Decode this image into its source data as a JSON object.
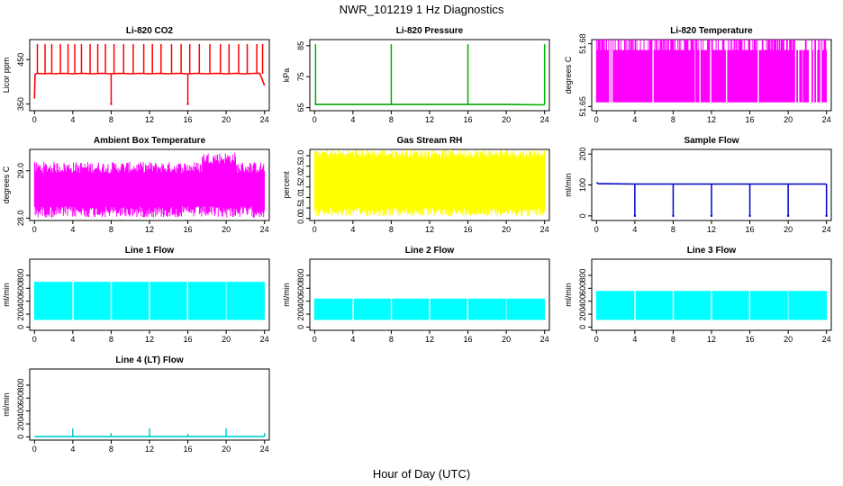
{
  "figure": {
    "title": "NWR_101219  1 Hz Diagnostics",
    "xlabel": "Hour of Day (UTC)"
  },
  "chart_data": [
    {
      "type": "line",
      "title": "Li-820 CO2",
      "ylabel": "Licor ppm",
      "color": "#ff0000",
      "xlim": [
        -0.5,
        24.5
      ],
      "ylim": [
        335,
        495
      ],
      "xticks": [
        0,
        4,
        8,
        12,
        16,
        20,
        24
      ],
      "yticks": [
        350,
        450
      ],
      "ytick_labels": [
        "350",
        "450"
      ],
      "series": [
        {
          "x": [
            0,
            0.05,
            0.1,
            0.3,
            1,
            1.5,
            2,
            3,
            4,
            5,
            6,
            7,
            8,
            9,
            10,
            11,
            12,
            13,
            14,
            15,
            16,
            17,
            18,
            19,
            20,
            21,
            22,
            23,
            23.5,
            24
          ],
          "values": [
            362,
            415,
            418,
            419,
            418,
            419,
            418,
            419,
            418,
            419,
            418,
            419,
            418,
            419,
            418,
            419,
            418,
            419,
            418,
            419,
            418,
            419,
            418,
            419,
            418,
            419,
            418,
            419,
            419,
            392
          ]
        }
      ],
      "spikes": [
        0.3,
        1.1,
        1.8,
        2.7,
        3.5,
        4.2,
        4.9,
        5.8,
        6.6,
        7.4,
        8.3,
        9.3,
        10.3,
        11.4,
        12.3,
        13.2,
        14.3,
        15.3,
        16.2,
        17.2,
        18.3,
        19.4,
        20.3,
        21.3,
        22.2,
        23.2,
        23.8
      ],
      "spike_peak": 485,
      "dips": [
        8.0,
        16.0
      ],
      "dip_low": 350
    },
    {
      "type": "line",
      "title": "Li-820 Pressure",
      "ylabel": "kPa",
      "color": "#00aa00",
      "xlim": [
        -0.5,
        24.5
      ],
      "ylim": [
        64,
        87
      ],
      "xticks": [
        0,
        4,
        8,
        12,
        16,
        20,
        24
      ],
      "yticks": [
        65,
        75,
        85
      ],
      "ytick_labels": [
        "65",
        "75",
        "85"
      ],
      "series": [
        {
          "x": [
            0,
            4,
            8,
            12,
            16,
            20,
            24
          ],
          "values": [
            66,
            66,
            66,
            66,
            66,
            66,
            65.9
          ]
        }
      ],
      "spikes": [
        0.1,
        8.0,
        16.0,
        24.0
      ],
      "spike_peak": 85.5
    },
    {
      "type": "area",
      "title": "Li-820 Temperature",
      "ylabel": "degrees C",
      "color": "#ff00ff",
      "xlim": [
        -0.5,
        24.5
      ],
      "ylim": [
        51.648,
        51.682
      ],
      "xticks": [
        0,
        4,
        8,
        12,
        16,
        20,
        24
      ],
      "yticks": [
        51.65,
        51.68
      ],
      "ytick_labels": [
        "51.65",
        "51.68"
      ],
      "band": [
        51.652,
        51.677
      ],
      "top": 51.682,
      "gaps": [
        1.4,
        1.6,
        5.9,
        10.3,
        10.8,
        11.9,
        13.6,
        16.9,
        20.8,
        21.1,
        21.5,
        22.2,
        22.4,
        22.7,
        23.0,
        23.4
      ]
    },
    {
      "type": "area",
      "title": "Ambient Box Temperature",
      "ylabel": "degrees C",
      "color": "#ff00ff",
      "xlim": [
        -0.5,
        24.5
      ],
      "ylim": [
        27.95,
        29.45
      ],
      "xticks": [
        0,
        4,
        8,
        12,
        16,
        20,
        24
      ],
      "yticks": [
        28.0,
        29.0
      ],
      "ytick_labels": [
        "28.0",
        "29.0"
      ],
      "band": [
        28.25,
        28.95
      ],
      "noise": 0.12
    },
    {
      "type": "area",
      "title": "Gas Stream RH",
      "ylabel": "percent",
      "color": "#ffff00",
      "xlim": [
        -0.5,
        24.5
      ],
      "ylim": [
        -0.1,
        3.3
      ],
      "xticks": [
        0,
        4,
        8,
        12,
        16,
        20,
        24
      ],
      "yticks": [
        0.0,
        0.5,
        1.0,
        1.5,
        2.0,
        2.5,
        3.0
      ],
      "ytick_labels": [
        "0.0",
        "0.5",
        "1.0",
        "1.5",
        "2.0",
        "2.5",
        "3.0"
      ],
      "band": [
        0.5,
        2.9
      ],
      "noise": 0.2
    },
    {
      "type": "line",
      "title": "Sample Flow",
      "ylabel": "ml/min",
      "color": "#0000cc",
      "xlim": [
        -0.5,
        24.5
      ],
      "ylim": [
        -15,
        215
      ],
      "xticks": [
        0,
        4,
        8,
        12,
        16,
        20,
        24
      ],
      "yticks": [
        0,
        100,
        200
      ],
      "ytick_labels": [
        "0",
        "100",
        "200"
      ],
      "series": [
        {
          "x": [
            0,
            0.2,
            4,
            8,
            12,
            16,
            20,
            24
          ],
          "values": [
            108,
            104,
            103,
            103,
            103,
            103,
            103,
            103
          ]
        }
      ],
      "dips": [
        4.0,
        8.0,
        12.0,
        16.0,
        20.0,
        24.0
      ],
      "dip_low": 0
    },
    {
      "type": "area",
      "title": "Line 1 Flow",
      "ylabel": "ml/min",
      "color": "#00ffff",
      "xlim": [
        -0.5,
        24.5
      ],
      "ylim": [
        -50,
        1050
      ],
      "xticks": [
        0,
        4,
        8,
        12,
        16,
        20,
        24
      ],
      "yticks": [
        0,
        200,
        400,
        600,
        800
      ],
      "ytick_labels": [
        "0",
        "200",
        "400",
        "600",
        "800"
      ],
      "band": [
        110,
        700
      ],
      "gaps": [
        4,
        8,
        12,
        16,
        20
      ]
    },
    {
      "type": "area",
      "title": "Line 2 Flow",
      "ylabel": "ml/min",
      "color": "#00ffff",
      "xlim": [
        -0.5,
        24.5
      ],
      "ylim": [
        -50,
        1050
      ],
      "xticks": [
        0,
        4,
        8,
        12,
        16,
        20,
        24
      ],
      "yticks": [
        0,
        200,
        400,
        600,
        800
      ],
      "ytick_labels": [
        "0",
        "200",
        "400",
        "600",
        "800"
      ],
      "band": [
        110,
        440
      ],
      "gaps": [
        4,
        8,
        12,
        16,
        20
      ]
    },
    {
      "type": "area",
      "title": "Line 3 Flow",
      "ylabel": "ml/min",
      "color": "#00ffff",
      "xlim": [
        -0.5,
        24.5
      ],
      "ylim": [
        -50,
        1050
      ],
      "xticks": [
        0,
        4,
        8,
        12,
        16,
        20,
        24
      ],
      "yticks": [
        0,
        200,
        400,
        600,
        800
      ],
      "ytick_labels": [
        "0",
        "200",
        "400",
        "600",
        "800"
      ],
      "band": [
        110,
        560
      ],
      "gaps": [
        4,
        8,
        12,
        16,
        20
      ]
    },
    {
      "type": "line",
      "title": "Line 4 (LT) Flow",
      "ylabel": "ml/min",
      "color": "#00cccc",
      "xlim": [
        -0.5,
        24.5
      ],
      "ylim": [
        -50,
        1050
      ],
      "xticks": [
        0,
        4,
        8,
        12,
        16,
        20,
        24
      ],
      "yticks": [
        0,
        200,
        400,
        600,
        800
      ],
      "ytick_labels": [
        "0",
        "200",
        "400",
        "600",
        "800"
      ],
      "series": [
        {
          "x": [
            0,
            4,
            8,
            12,
            16,
            20,
            24
          ],
          "values": [
            5,
            5,
            5,
            5,
            5,
            5,
            5
          ]
        }
      ],
      "spikes": [
        4,
        8,
        12,
        16,
        20,
        24
      ],
      "spike_peaks": [
        130,
        60,
        130,
        50,
        130,
        60
      ]
    }
  ]
}
